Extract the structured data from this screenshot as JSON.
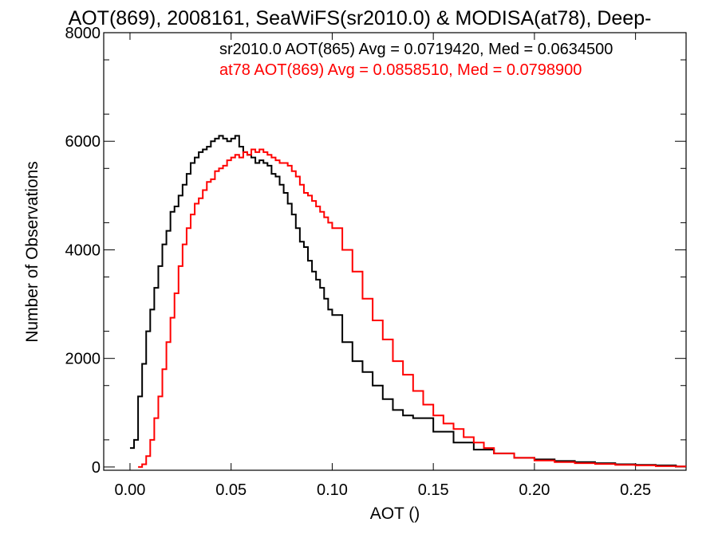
{
  "chart_data": {
    "type": "line",
    "title": "AOT(869), 2008161, SeaWiFS(sr2010.0) & MODISA(at78), Deep-",
    "xlabel": "AOT ()",
    "ylabel": "Number of Observations",
    "xlim": [
      -0.013,
      0.275
    ],
    "ylim": [
      -60,
      8000
    ],
    "xticks": [
      0.0,
      0.05,
      0.1,
      0.15,
      0.2,
      0.25
    ],
    "xtick_labels": [
      "0.00",
      "0.05",
      "0.10",
      "0.15",
      "0.20",
      "0.25"
    ],
    "yticks": [
      0,
      2000,
      4000,
      6000,
      8000
    ],
    "ytick_labels": [
      "0",
      "2000",
      "4000",
      "6000",
      "8000"
    ],
    "grid": false,
    "legend_position": "top-right",
    "step": true,
    "series": [
      {
        "name": "sr2010.0 AOT(865) Avg = 0.0719420, Med = 0.0634500",
        "color": "#000000",
        "x": [
          0.0,
          0.002,
          0.004,
          0.006,
          0.008,
          0.01,
          0.012,
          0.014,
          0.016,
          0.018,
          0.02,
          0.022,
          0.024,
          0.026,
          0.028,
          0.03,
          0.032,
          0.034,
          0.036,
          0.038,
          0.04,
          0.042,
          0.044,
          0.046,
          0.048,
          0.05,
          0.052,
          0.054,
          0.056,
          0.058,
          0.06,
          0.062,
          0.064,
          0.066,
          0.068,
          0.07,
          0.072,
          0.074,
          0.076,
          0.078,
          0.08,
          0.082,
          0.084,
          0.086,
          0.088,
          0.09,
          0.092,
          0.094,
          0.096,
          0.098,
          0.1,
          0.105,
          0.11,
          0.115,
          0.12,
          0.125,
          0.13,
          0.135,
          0.14,
          0.15,
          0.16,
          0.17,
          0.18,
          0.19,
          0.2,
          0.21,
          0.22,
          0.23,
          0.24,
          0.25,
          0.26,
          0.27,
          0.275
        ],
        "values": [
          350,
          500,
          1300,
          1900,
          2500,
          2900,
          3300,
          3700,
          4100,
          4350,
          4700,
          4800,
          5000,
          5200,
          5400,
          5600,
          5700,
          5800,
          5850,
          5900,
          6000,
          6050,
          6100,
          6050,
          6000,
          6050,
          6100,
          5900,
          5800,
          5750,
          5700,
          5600,
          5650,
          5600,
          5550,
          5400,
          5350,
          5200,
          5050,
          4850,
          4650,
          4400,
          4150,
          4050,
          3800,
          3600,
          3450,
          3300,
          3100,
          2900,
          2800,
          2300,
          1950,
          1750,
          1500,
          1250,
          1050,
          950,
          900,
          650,
          450,
          320,
          250,
          170,
          140,
          110,
          90,
          70,
          50,
          40,
          30,
          10,
          0
        ]
      },
      {
        "name": "at78 AOT(869) Avg = 0.0858510, Med = 0.0798900",
        "color": "#ff0000",
        "x": [
          0.004,
          0.006,
          0.008,
          0.01,
          0.012,
          0.014,
          0.016,
          0.018,
          0.02,
          0.022,
          0.024,
          0.026,
          0.028,
          0.03,
          0.032,
          0.034,
          0.036,
          0.038,
          0.04,
          0.042,
          0.044,
          0.046,
          0.048,
          0.05,
          0.052,
          0.054,
          0.056,
          0.058,
          0.06,
          0.062,
          0.064,
          0.066,
          0.068,
          0.07,
          0.072,
          0.074,
          0.076,
          0.078,
          0.08,
          0.082,
          0.084,
          0.086,
          0.088,
          0.09,
          0.092,
          0.094,
          0.096,
          0.098,
          0.1,
          0.105,
          0.11,
          0.115,
          0.12,
          0.125,
          0.13,
          0.135,
          0.14,
          0.145,
          0.15,
          0.155,
          0.16,
          0.165,
          0.17,
          0.175,
          0.18,
          0.19,
          0.2,
          0.21,
          0.22,
          0.23,
          0.24,
          0.25,
          0.26,
          0.27,
          0.275
        ],
        "values": [
          0,
          50,
          200,
          500,
          900,
          1300,
          1800,
          2300,
          2750,
          3200,
          3700,
          4100,
          4400,
          4650,
          4850,
          4950,
          5100,
          5250,
          5300,
          5450,
          5500,
          5550,
          5650,
          5700,
          5750,
          5700,
          5800,
          5750,
          5850,
          5800,
          5850,
          5800,
          5750,
          5700,
          5650,
          5600,
          5600,
          5550,
          5450,
          5350,
          5200,
          5050,
          5000,
          4900,
          4800,
          4700,
          4600,
          4500,
          4400,
          4000,
          3600,
          3100,
          2700,
          2350,
          1950,
          1700,
          1400,
          1150,
          950,
          800,
          700,
          550,
          450,
          350,
          250,
          170,
          120,
          90,
          70,
          55,
          40,
          30,
          15,
          10,
          0
        ]
      }
    ]
  }
}
